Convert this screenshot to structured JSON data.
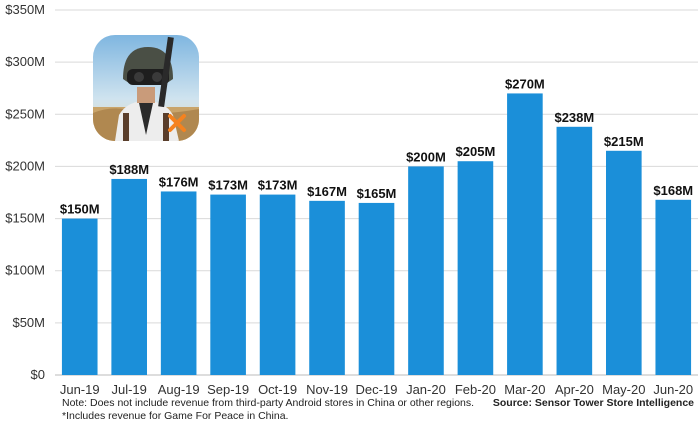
{
  "chart_data": {
    "type": "bar",
    "title": "",
    "xlabel": "",
    "ylabel": "",
    "categories": [
      "Jun-19",
      "Jul-19",
      "Aug-19",
      "Sep-19",
      "Oct-19",
      "Nov-19",
      "Dec-19",
      "Jan-20",
      "Feb-20",
      "Mar-20",
      "Apr-20",
      "May-20",
      "Jun-20"
    ],
    "values": [
      150,
      188,
      176,
      173,
      173,
      167,
      165,
      200,
      205,
      270,
      238,
      215,
      168
    ],
    "data_labels": [
      "$150M",
      "$188M",
      "$176M",
      "$173M",
      "$173M",
      "$167M",
      "$165M",
      "$200M",
      "$205M",
      "$270M",
      "$238M",
      "$215M",
      "$168M"
    ],
    "ylim": [
      0,
      350
    ],
    "y_ticks": [
      0,
      50,
      100,
      150,
      200,
      250,
      300,
      350
    ],
    "y_tick_labels": [
      "$0",
      "$50M",
      "$100M",
      "$150M",
      "$200M",
      "$250M",
      "$300M",
      "$350M"
    ],
    "grid": true,
    "bar_color": "#1B8FD9",
    "grid_color": "#D9D9D9"
  },
  "footnotes": {
    "line1": "Note: Does not include revenue from third-party Android stores in China or other regions.",
    "line2": "*Includes revenue for Game For Peace in China."
  },
  "source": "Source: Sensor Tower Store Intelligence",
  "app_icon": {
    "name": "game-app-icon",
    "accent": "#F5821F"
  }
}
